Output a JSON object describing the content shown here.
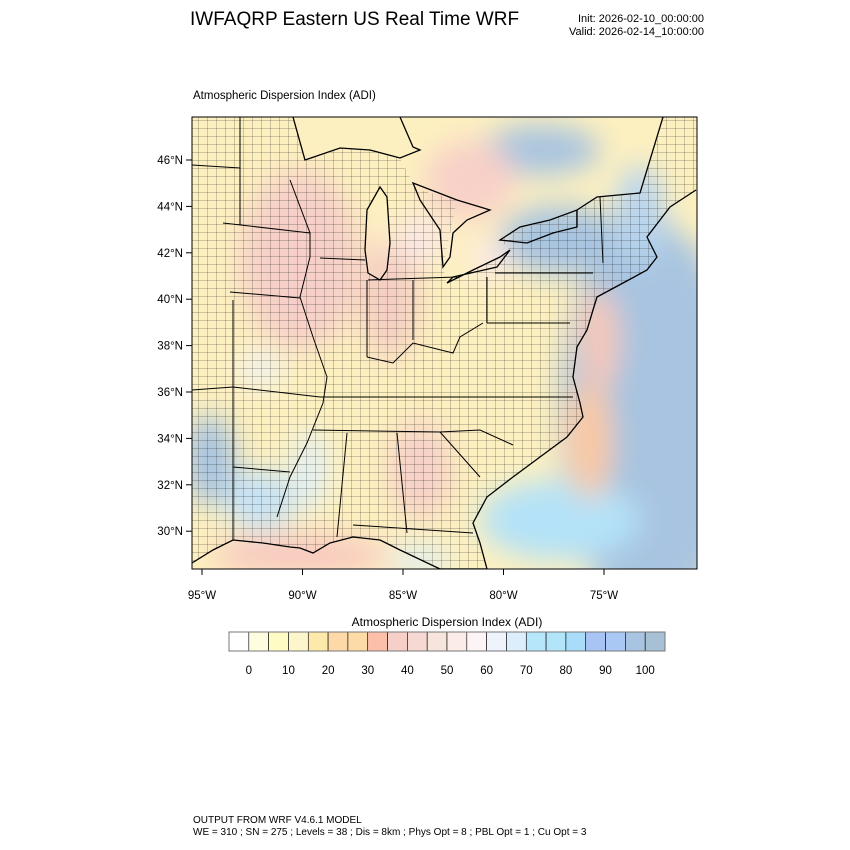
{
  "header": {
    "title": "IWFAQRP Eastern US Real Time WRF",
    "init": "Init: 2026-02-10_00:00:00",
    "valid": "Valid: 2026-02-14_10:00:00"
  },
  "map": {
    "subtitle": "Atmospheric Dispersion Index   (ADI)",
    "lat_labels": [
      "46°N",
      "44°N",
      "42°N",
      "40°N",
      "38°N",
      "36°N",
      "34°N",
      "32°N",
      "30°N"
    ],
    "lon_labels": [
      "95°W",
      "90°W",
      "85°W",
      "80°W",
      "75°W"
    ],
    "variable": "ADI"
  },
  "colorbar": {
    "title": "Atmospheric Dispersion Index  (ADI)",
    "labels": [
      "0",
      "10",
      "20",
      "30",
      "40",
      "50",
      "60",
      "70",
      "80",
      "90",
      "100"
    ],
    "colors": [
      "#ffffff",
      "#fffde0",
      "#fffbc4",
      "#fdf5cc",
      "#fde9aa",
      "#fdd9a8",
      "#fddba6",
      "#fcbfa9",
      "#f6d0c8",
      "#f5d9d2",
      "#f7e4dc",
      "#fbece8",
      "#fdf5f5",
      "#eef3fc",
      "#dcedfc",
      "#b6e6fa",
      "#b2e4fa",
      "#a8dcf8",
      "#a8c4f4",
      "#aac8f4",
      "#a8c4e0",
      "#a8c0d6"
    ]
  },
  "footer": {
    "line1": "OUTPUT FROM WRF V4.6.1 MODEL",
    "line2": "WE = 310 ; SN = 275 ; Levels = 38 ; Dis = 8km ; Phys Opt = 8 ; PBL Opt = 1 ; Cu Opt = 3"
  }
}
